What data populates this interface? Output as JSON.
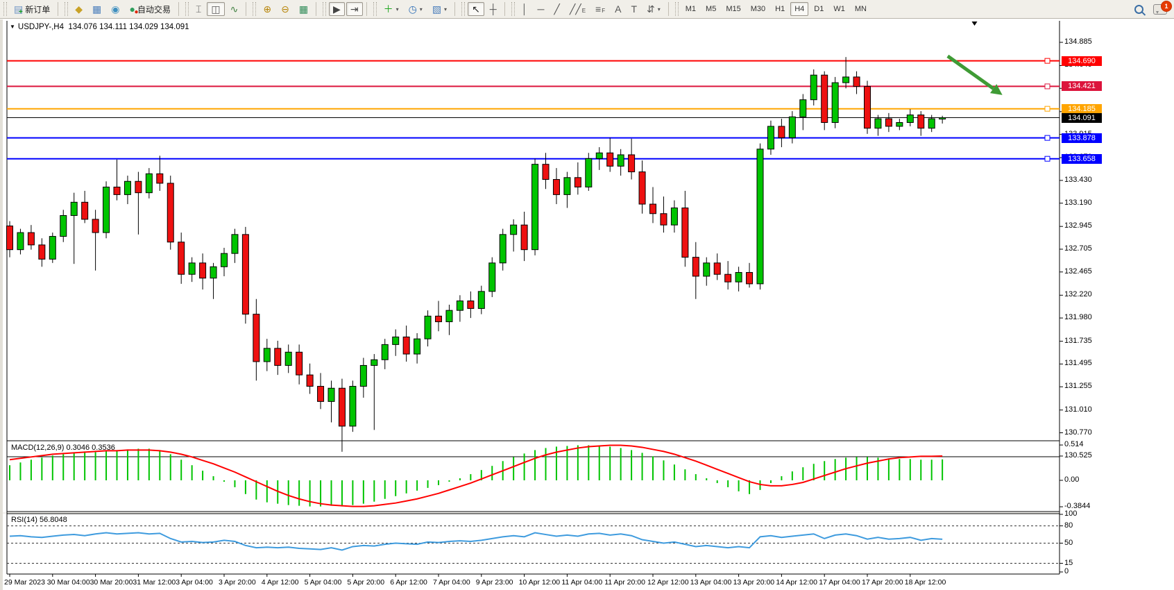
{
  "window": {
    "dropdown_marker": "▼",
    "symbol_label": "USDJPY-,H4",
    "ohlc_text": "134.076 134.111 134.029 134.091"
  },
  "toolbar": {
    "groups": [
      {
        "items": [
          {
            "name": "new-order-button",
            "glyph": "▤",
            "color": "#6f94c4",
            "badge": "+",
            "badge_color": "#1fa71f",
            "label": "新订单"
          }
        ]
      },
      {
        "items": [
          {
            "name": "chart-wizard-button",
            "glyph": "◆",
            "color": "#c9a227"
          },
          {
            "name": "market-watch-button",
            "glyph": "▦",
            "color": "#4a7ebb"
          },
          {
            "name": "navigator-button",
            "glyph": "◉",
            "color": "#3f8fbf"
          },
          {
            "name": "autotrading-button",
            "glyph": "●",
            "color": "#2e9e5b",
            "badge": "●",
            "badge_color": "#dd2200",
            "label": "自动交易"
          }
        ]
      },
      {
        "items": [
          {
            "name": "bar-chart-button",
            "glyph": "⌶",
            "color": "#555555"
          },
          {
            "name": "candlestick-chart-button",
            "glyph": "◫",
            "color": "#555555",
            "pressed": true
          },
          {
            "name": "line-chart-button",
            "glyph": "∿",
            "color": "#3f7f3f"
          }
        ]
      },
      {
        "items": [
          {
            "name": "zoom-in-button",
            "glyph": "⊕",
            "color": "#b8860b"
          },
          {
            "name": "zoom-out-button",
            "glyph": "⊖",
            "color": "#b8860b"
          },
          {
            "name": "tile-windows-button",
            "glyph": "▦",
            "color": "#2e8b57"
          }
        ]
      },
      {
        "items": [
          {
            "name": "autoscroll-button",
            "glyph": "▶",
            "color": "#444444",
            "pressed": true
          },
          {
            "name": "chart-shift-button",
            "glyph": "⇥",
            "color": "#444444",
            "pressed": true
          }
        ]
      },
      {
        "items": [
          {
            "name": "indicators-button",
            "glyph": "＋",
            "color": "#1fa71f",
            "caret": true
          },
          {
            "name": "periods-button",
            "glyph": "◷",
            "color": "#2f6fb7",
            "caret": true
          },
          {
            "name": "templates-button",
            "glyph": "▧",
            "color": "#4a7ebb",
            "caret": true
          }
        ]
      },
      {
        "items": [
          {
            "name": "cursor-button",
            "glyph": "↖",
            "color": "#222222",
            "pressed": true
          },
          {
            "name": "crosshair-button",
            "glyph": "┼",
            "color": "#555555"
          }
        ]
      },
      {
        "items": [
          {
            "name": "vertical-line-button",
            "glyph": "│",
            "color": "#555555"
          },
          {
            "name": "horizontal-line-button",
            "glyph": "─",
            "color": "#555555"
          },
          {
            "name": "trendline-button",
            "glyph": "╱",
            "color": "#555555"
          },
          {
            "name": "equidistant-channel-button",
            "glyph": "╱╱",
            "color": "#555555",
            "sub": "E"
          },
          {
            "name": "fibonacci-button",
            "glyph": "≡",
            "color": "#555555",
            "sub": "F"
          },
          {
            "name": "text-button",
            "glyph": "A",
            "color": "#555555"
          },
          {
            "name": "text-label-button",
            "glyph": "T",
            "color": "#555555"
          },
          {
            "name": "arrows-button",
            "glyph": "⇵",
            "color": "#555555",
            "caret": true
          }
        ]
      }
    ],
    "timeframes": [
      "M1",
      "M5",
      "M15",
      "M30",
      "H1",
      "H4",
      "D1",
      "W1",
      "MN"
    ],
    "active_timeframe": "H4",
    "notification_count": "1"
  },
  "chart_data": {
    "type": "candlestick",
    "symbol": "USDJPY-",
    "timeframe": "H4",
    "title_ohlc": {
      "open": "134.076",
      "high": "134.111",
      "low": "134.029",
      "close": "134.091"
    },
    "price_axis_ticks": [
      134.885,
      134.64,
      134.4,
      134.155,
      133.915,
      133.67,
      133.43,
      133.19,
      132.945,
      132.705,
      132.465,
      132.22,
      131.98,
      131.735,
      131.495,
      131.255,
      131.01,
      130.77,
      130.525
    ],
    "hlines": [
      {
        "price": 134.69,
        "color": "#FF0000"
      },
      {
        "price": 134.421,
        "color": "#DC143C"
      },
      {
        "price": 134.185,
        "color": "#FFA500"
      },
      {
        "price": 133.878,
        "color": "#0000FF"
      },
      {
        "price": 133.658,
        "color": "#0000FF"
      }
    ],
    "current_price": 134.091,
    "up_color": "#00C400",
    "down_color": "#EE1111",
    "candles": [
      [
        132.95,
        133.0,
        132.62,
        132.7
      ],
      [
        132.7,
        132.92,
        132.65,
        132.88
      ],
      [
        132.88,
        132.96,
        132.7,
        132.75
      ],
      [
        132.75,
        132.82,
        132.52,
        132.6
      ],
      [
        132.6,
        132.88,
        132.56,
        132.84
      ],
      [
        132.84,
        133.12,
        132.78,
        133.06
      ],
      [
        133.06,
        133.3,
        132.55,
        133.2
      ],
      [
        133.2,
        133.32,
        132.98,
        133.02
      ],
      [
        133.02,
        133.12,
        132.48,
        132.88
      ],
      [
        132.88,
        133.42,
        132.82,
        133.36
      ],
      [
        133.36,
        133.65,
        133.22,
        133.28
      ],
      [
        133.28,
        133.48,
        133.18,
        133.42
      ],
      [
        133.42,
        133.52,
        132.86,
        133.3
      ],
      [
        133.3,
        133.56,
        133.24,
        133.5
      ],
      [
        133.5,
        133.69,
        133.32,
        133.4
      ],
      [
        133.4,
        133.48,
        132.7,
        132.78
      ],
      [
        132.78,
        132.88,
        132.34,
        132.44
      ],
      [
        132.44,
        132.62,
        132.36,
        132.56
      ],
      [
        132.56,
        132.66,
        132.28,
        132.4
      ],
      [
        132.4,
        132.56,
        132.18,
        132.52
      ],
      [
        132.52,
        132.72,
        132.42,
        132.66
      ],
      [
        132.66,
        132.92,
        132.56,
        132.86
      ],
      [
        132.86,
        132.94,
        131.92,
        132.02
      ],
      [
        132.02,
        132.18,
        131.32,
        131.52
      ],
      [
        131.52,
        131.76,
        131.42,
        131.66
      ],
      [
        131.66,
        131.74,
        131.38,
        131.48
      ],
      [
        131.48,
        131.7,
        131.4,
        131.62
      ],
      [
        131.62,
        131.7,
        131.28,
        131.38
      ],
      [
        131.38,
        131.5,
        131.18,
        131.26
      ],
      [
        131.26,
        131.4,
        131.02,
        131.1
      ],
      [
        131.1,
        131.32,
        130.88,
        131.24
      ],
      [
        131.24,
        131.34,
        130.57,
        130.84
      ],
      [
        130.84,
        131.32,
        130.78,
        131.26
      ],
      [
        131.26,
        131.56,
        131.14,
        131.48
      ],
      [
        131.48,
        131.6,
        130.8,
        131.54
      ],
      [
        131.54,
        131.76,
        131.44,
        131.7
      ],
      [
        131.7,
        131.86,
        131.58,
        131.78
      ],
      [
        131.78,
        131.9,
        131.52,
        131.6
      ],
      [
        131.6,
        131.82,
        131.5,
        131.76
      ],
      [
        131.76,
        132.06,
        131.68,
        132.0
      ],
      [
        132.0,
        132.16,
        131.84,
        131.94
      ],
      [
        131.94,
        132.12,
        131.8,
        132.06
      ],
      [
        132.06,
        132.22,
        131.94,
        132.16
      ],
      [
        132.16,
        132.26,
        131.98,
        132.08
      ],
      [
        132.08,
        132.32,
        132.02,
        132.26
      ],
      [
        132.26,
        132.62,
        132.2,
        132.56
      ],
      [
        132.56,
        132.92,
        132.48,
        132.86
      ],
      [
        132.86,
        133.02,
        132.68,
        132.96
      ],
      [
        132.96,
        133.1,
        132.58,
        132.7
      ],
      [
        132.7,
        133.66,
        132.64,
        133.6
      ],
      [
        133.6,
        133.72,
        133.34,
        133.44
      ],
      [
        133.44,
        133.56,
        133.18,
        133.28
      ],
      [
        133.28,
        133.52,
        133.14,
        133.46
      ],
      [
        133.46,
        133.62,
        133.28,
        133.36
      ],
      [
        133.36,
        133.72,
        133.32,
        133.66
      ],
      [
        133.66,
        133.78,
        133.54,
        133.72
      ],
      [
        133.72,
        133.88,
        133.52,
        133.58
      ],
      [
        133.58,
        133.76,
        133.48,
        133.7
      ],
      [
        133.7,
        133.87,
        133.44,
        133.52
      ],
      [
        133.52,
        133.64,
        133.08,
        133.18
      ],
      [
        133.18,
        133.36,
        132.98,
        133.08
      ],
      [
        133.08,
        133.26,
        132.88,
        132.96
      ],
      [
        132.96,
        133.22,
        132.88,
        133.14
      ],
      [
        133.14,
        133.32,
        132.52,
        132.62
      ],
      [
        132.62,
        132.78,
        132.18,
        132.42
      ],
      [
        132.42,
        132.62,
        132.32,
        132.56
      ],
      [
        132.56,
        132.66,
        132.38,
        132.44
      ],
      [
        132.44,
        132.58,
        132.28,
        132.36
      ],
      [
        132.36,
        132.52,
        132.26,
        132.46
      ],
      [
        132.46,
        132.56,
        132.3,
        132.34
      ],
      [
        132.34,
        133.82,
        132.28,
        133.76
      ],
      [
        133.76,
        134.06,
        133.7,
        134.0
      ],
      [
        134.0,
        134.08,
        133.78,
        133.88
      ],
      [
        133.88,
        134.16,
        133.82,
        134.1
      ],
      [
        134.1,
        134.34,
        133.96,
        134.28
      ],
      [
        134.28,
        134.6,
        134.22,
        134.54
      ],
      [
        134.54,
        134.58,
        133.96,
        134.04
      ],
      [
        134.04,
        134.52,
        133.98,
        134.46
      ],
      [
        134.46,
        134.73,
        134.4,
        134.52
      ],
      [
        134.52,
        134.58,
        134.34,
        134.42
      ],
      [
        134.42,
        134.48,
        133.92,
        133.98
      ],
      [
        133.98,
        134.12,
        133.9,
        134.08
      ],
      [
        134.08,
        134.14,
        133.94,
        134.0
      ],
      [
        134.0,
        134.08,
        133.96,
        134.04
      ],
      [
        134.04,
        134.18,
        134.0,
        134.12
      ],
      [
        134.12,
        134.16,
        133.9,
        133.98
      ],
      [
        133.98,
        134.12,
        133.94,
        134.08
      ],
      [
        134.076,
        134.111,
        134.029,
        134.091
      ]
    ],
    "time_labels": [
      {
        "text": "29 Mar 2023",
        "bar": 0
      },
      {
        "text": "30 Mar 04:00",
        "bar": 4
      },
      {
        "text": "30 Mar 20:00",
        "bar": 8
      },
      {
        "text": "31 Mar 12:00",
        "bar": 12
      },
      {
        "text": "3 Apr 04:00",
        "bar": 16
      },
      {
        "text": "3 Apr 20:00",
        "bar": 20
      },
      {
        "text": "4 Apr 12:00",
        "bar": 24
      },
      {
        "text": "5 Apr 04:00",
        "bar": 28
      },
      {
        "text": "5 Apr 20:00",
        "bar": 32
      },
      {
        "text": "6 Apr 12:00",
        "bar": 36
      },
      {
        "text": "7 Apr 04:00",
        "bar": 40
      },
      {
        "text": "9 Apr 23:00",
        "bar": 44
      },
      {
        "text": "10 Apr 12:00",
        "bar": 48
      },
      {
        "text": "11 Apr 04:00",
        "bar": 52
      },
      {
        "text": "11 Apr 20:00",
        "bar": 56
      },
      {
        "text": "12 Apr 12:00",
        "bar": 60
      },
      {
        "text": "13 Apr 04:00",
        "bar": 64
      },
      {
        "text": "13 Apr 20:00",
        "bar": 68
      },
      {
        "text": "14 Apr 12:00",
        "bar": 72
      },
      {
        "text": "17 Apr 04:00",
        "bar": 76
      },
      {
        "text": "17 Apr 20:00",
        "bar": 80
      },
      {
        "text": "18 Apr 12:00",
        "bar": 84
      }
    ],
    "macd": {
      "label": "MACD(12,26,9) 0.3046 0.3536",
      "axis_ticks": [
        {
          "v": 0.514,
          "t": "0.514"
        },
        {
          "v": 0,
          "t": "0.00"
        },
        {
          "v": -0.3844,
          "t": "-0.3844"
        }
      ],
      "histogram_color": "#00C400",
      "signal_color": "#FF0000",
      "histogram": [
        0.22,
        0.26,
        0.3,
        0.33,
        0.36,
        0.38,
        0.4,
        0.42,
        0.41,
        0.43,
        0.44,
        0.45,
        0.46,
        0.46,
        0.44,
        0.38,
        0.3,
        0.22,
        0.14,
        0.06,
        -0.02,
        -0.1,
        -0.2,
        -0.28,
        -0.32,
        -0.34,
        -0.36,
        -0.37,
        -0.38,
        -0.38,
        -0.37,
        -0.38,
        -0.36,
        -0.34,
        -0.31,
        -0.27,
        -0.23,
        -0.19,
        -0.15,
        -0.11,
        -0.07,
        -0.02,
        0.03,
        0.09,
        0.15,
        0.21,
        0.28,
        0.34,
        0.39,
        0.44,
        0.47,
        0.49,
        0.5,
        0.51,
        0.51,
        0.5,
        0.49,
        0.47,
        0.44,
        0.4,
        0.35,
        0.29,
        0.23,
        0.16,
        0.09,
        0.03,
        -0.04,
        -0.1,
        -0.16,
        -0.2,
        -0.14,
        -0.04,
        0.06,
        0.13,
        0.19,
        0.24,
        0.28,
        0.31,
        0.33,
        0.34,
        0.34,
        0.33,
        0.32,
        0.31,
        0.31,
        0.3,
        0.3,
        0.3046
      ],
      "signal": [
        0.3,
        0.32,
        0.34,
        0.36,
        0.38,
        0.39,
        0.4,
        0.41,
        0.42,
        0.43,
        0.43,
        0.44,
        0.44,
        0.44,
        0.43,
        0.41,
        0.38,
        0.34,
        0.29,
        0.24,
        0.18,
        0.12,
        0.05,
        -0.02,
        -0.09,
        -0.16,
        -0.22,
        -0.27,
        -0.31,
        -0.34,
        -0.36,
        -0.37,
        -0.38,
        -0.38,
        -0.37,
        -0.35,
        -0.33,
        -0.3,
        -0.27,
        -0.23,
        -0.19,
        -0.14,
        -0.09,
        -0.04,
        0.02,
        0.08,
        0.14,
        0.2,
        0.26,
        0.32,
        0.37,
        0.41,
        0.44,
        0.47,
        0.49,
        0.5,
        0.51,
        0.51,
        0.5,
        0.48,
        0.45,
        0.42,
        0.38,
        0.33,
        0.28,
        0.22,
        0.16,
        0.1,
        0.04,
        -0.02,
        -0.06,
        -0.08,
        -0.08,
        -0.06,
        -0.03,
        0.02,
        0.07,
        0.12,
        0.17,
        0.21,
        0.25,
        0.28,
        0.31,
        0.33,
        0.34,
        0.35,
        0.35,
        0.3536
      ]
    },
    "rsi": {
      "label": "RSI(14) 56.8048",
      "axis_ticks": [
        {
          "v": 100,
          "t": "100"
        },
        {
          "v": 80,
          "t": "80"
        },
        {
          "v": 50,
          "t": "50"
        },
        {
          "v": 15,
          "t": "15"
        },
        {
          "v": 0,
          "t": "0"
        }
      ],
      "levels": [
        80,
        50,
        15
      ],
      "line_color": "#3E9BDE",
      "series": [
        62,
        63,
        61,
        60,
        62,
        64,
        65,
        63,
        66,
        68,
        66,
        67,
        68,
        66,
        67,
        58,
        52,
        53,
        51,
        52,
        55,
        53,
        46,
        42,
        43,
        42,
        43,
        41,
        40,
        39,
        42,
        38,
        44,
        46,
        45,
        48,
        50,
        49,
        48,
        52,
        51,
        53,
        54,
        53,
        55,
        58,
        61,
        63,
        61,
        68,
        65,
        62,
        64,
        62,
        66,
        67,
        64,
        66,
        63,
        56,
        53,
        50,
        52,
        48,
        44,
        46,
        44,
        42,
        44,
        42,
        61,
        63,
        60,
        62,
        64,
        66,
        58,
        64,
        66,
        63,
        57,
        60,
        57,
        58,
        60,
        55,
        58,
        56.8
      ]
    },
    "annotation_arrow": {
      "from_bar": 87.5,
      "from_price": 134.74,
      "to_bar": 92.6,
      "to_price": 134.33,
      "color": "#3F9B35"
    },
    "shift_marker_bar": 90
  }
}
